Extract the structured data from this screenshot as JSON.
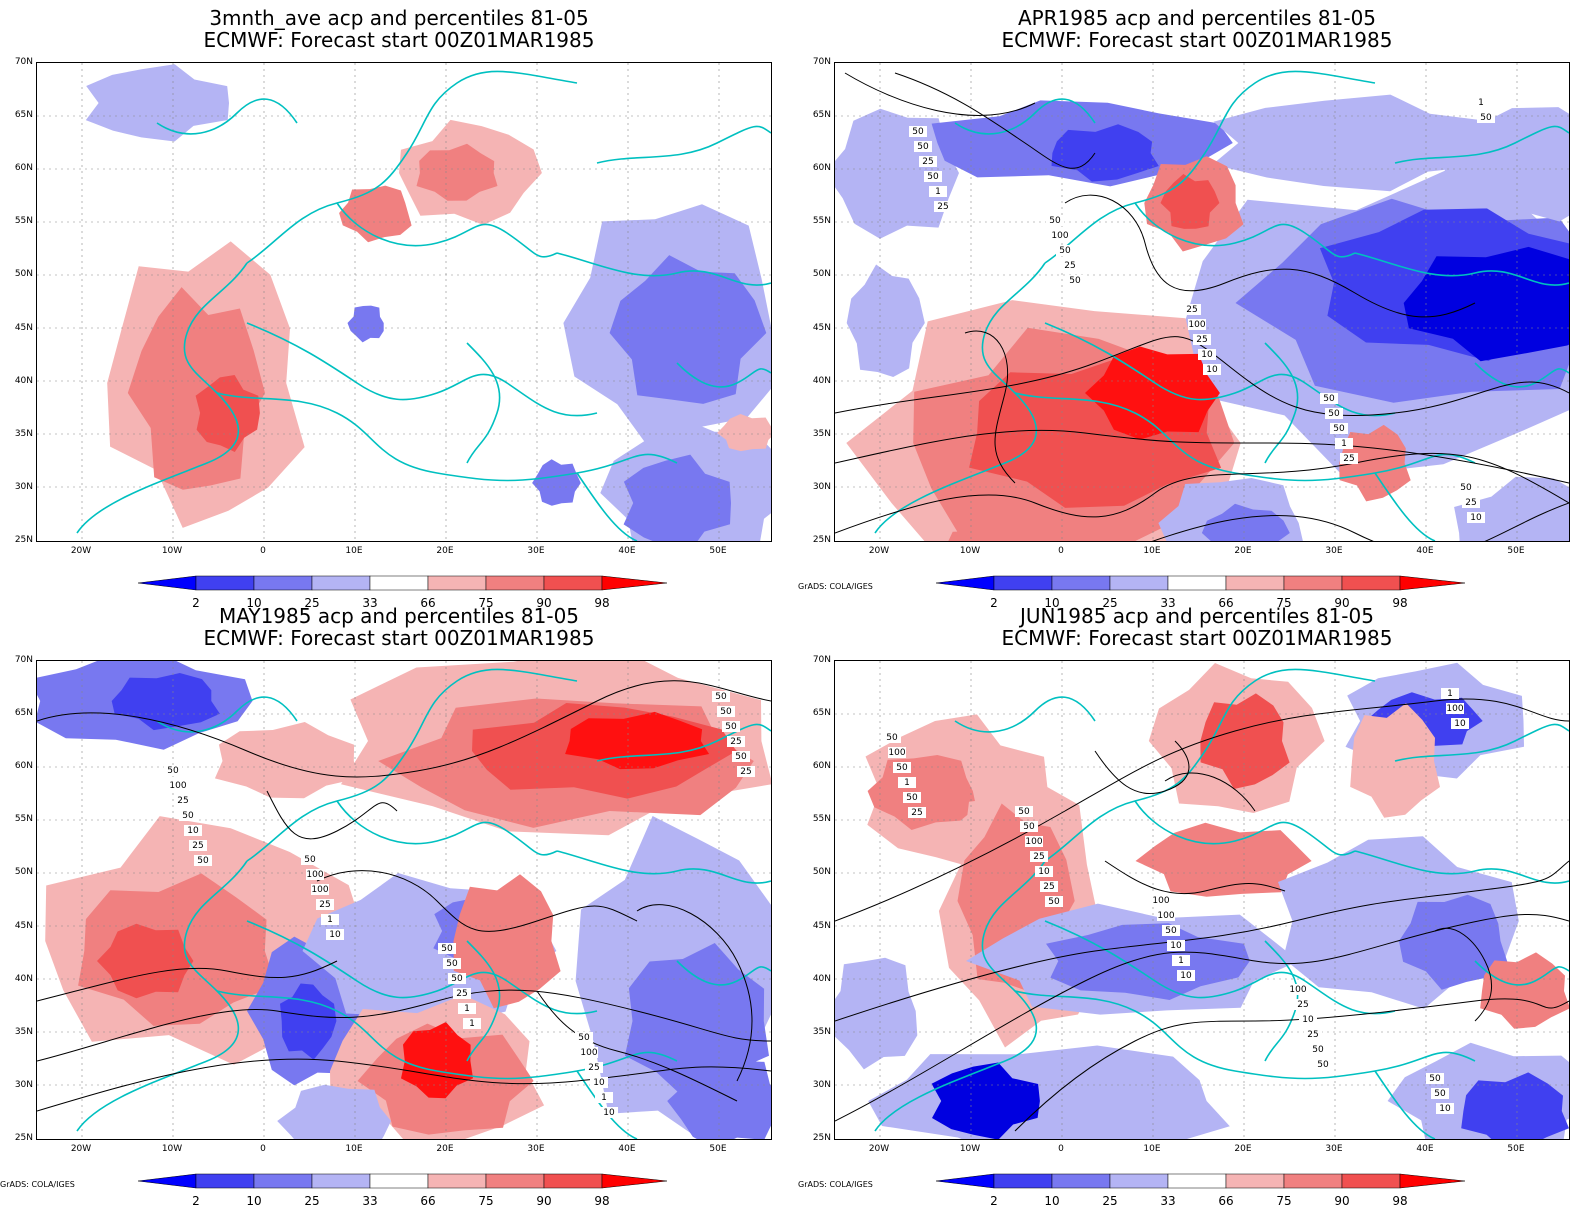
{
  "panels": [
    {
      "title1": "3mnth_ave acp and percentiles 81-05",
      "title2": "ECMWF: Forecast start 00Z01MAR1985",
      "contour_labels": []
    },
    {
      "title1": "APR1985 acp and percentiles 81-05",
      "title2": "ECMWF: Forecast start 00Z01MAR1985",
      "contour_labels": [
        "50",
        "50",
        "25",
        "50",
        "50",
        "50",
        "100",
        "100",
        "50",
        "25",
        "25",
        "50",
        "25",
        "50",
        "10",
        "50",
        "25",
        "10",
        "1",
        "1",
        "1",
        "50",
        "10",
        "25",
        "50",
        "25"
      ]
    },
    {
      "title1": "MAY1985 acp and percentiles 81-05",
      "title2": "ECMWF: Forecast start 00Z01MAR1985",
      "contour_labels": [
        "50",
        "50",
        "50",
        "50",
        "50",
        "100",
        "100",
        "50",
        "100",
        "50",
        "25",
        "100",
        "50",
        "25",
        "50",
        "50",
        "25",
        "25",
        "10",
        "25",
        "10",
        "1",
        "1",
        "1",
        "50",
        "25",
        "10",
        "1",
        "10",
        "25",
        "50"
      ]
    },
    {
      "title1": "JUN1985 acp and percentiles 81-05",
      "title2": "ECMWF: Forecast start 00Z01MAR1985",
      "contour_labels": [
        "50",
        "100",
        "100",
        "50",
        "50",
        "50",
        "100",
        "25",
        "50",
        "100",
        "100",
        "50",
        "10",
        "10",
        "50",
        "25",
        "10",
        "25",
        "1",
        "1",
        "10",
        "1",
        "50",
        "100",
        "50",
        "25",
        "10",
        "50",
        "10",
        "25",
        "50"
      ]
    }
  ],
  "y_axis_labels": [
    "70N",
    "65N",
    "60N",
    "55N",
    "50N",
    "45N",
    "40N",
    "35N",
    "30N",
    "25N"
  ],
  "x_axis_labels": [
    "20W",
    "10W",
    "0",
    "10E",
    "20E",
    "30E",
    "40E",
    "50E"
  ],
  "legend": {
    "ticks": [
      "2",
      "10",
      "25",
      "33",
      "66",
      "75",
      "90",
      "98"
    ],
    "colors": [
      "#0000ff",
      "#4040f0",
      "#7878f0",
      "#b4b4f4",
      "#ffffff",
      "#f5b4b4",
      "#f08080",
      "#f05050",
      "#ff0000"
    ]
  },
  "credit": "GrADS: COLA/IGES",
  "map_colors": {
    "coast": "#00c0c0",
    "contour": "#000000",
    "blue_shades": [
      "#b4b4f4",
      "#7878f0",
      "#4040f0",
      "#0000e0"
    ],
    "red_shades": [
      "#f5b4b4",
      "#f08080",
      "#f05050",
      "#ff1010"
    ]
  }
}
